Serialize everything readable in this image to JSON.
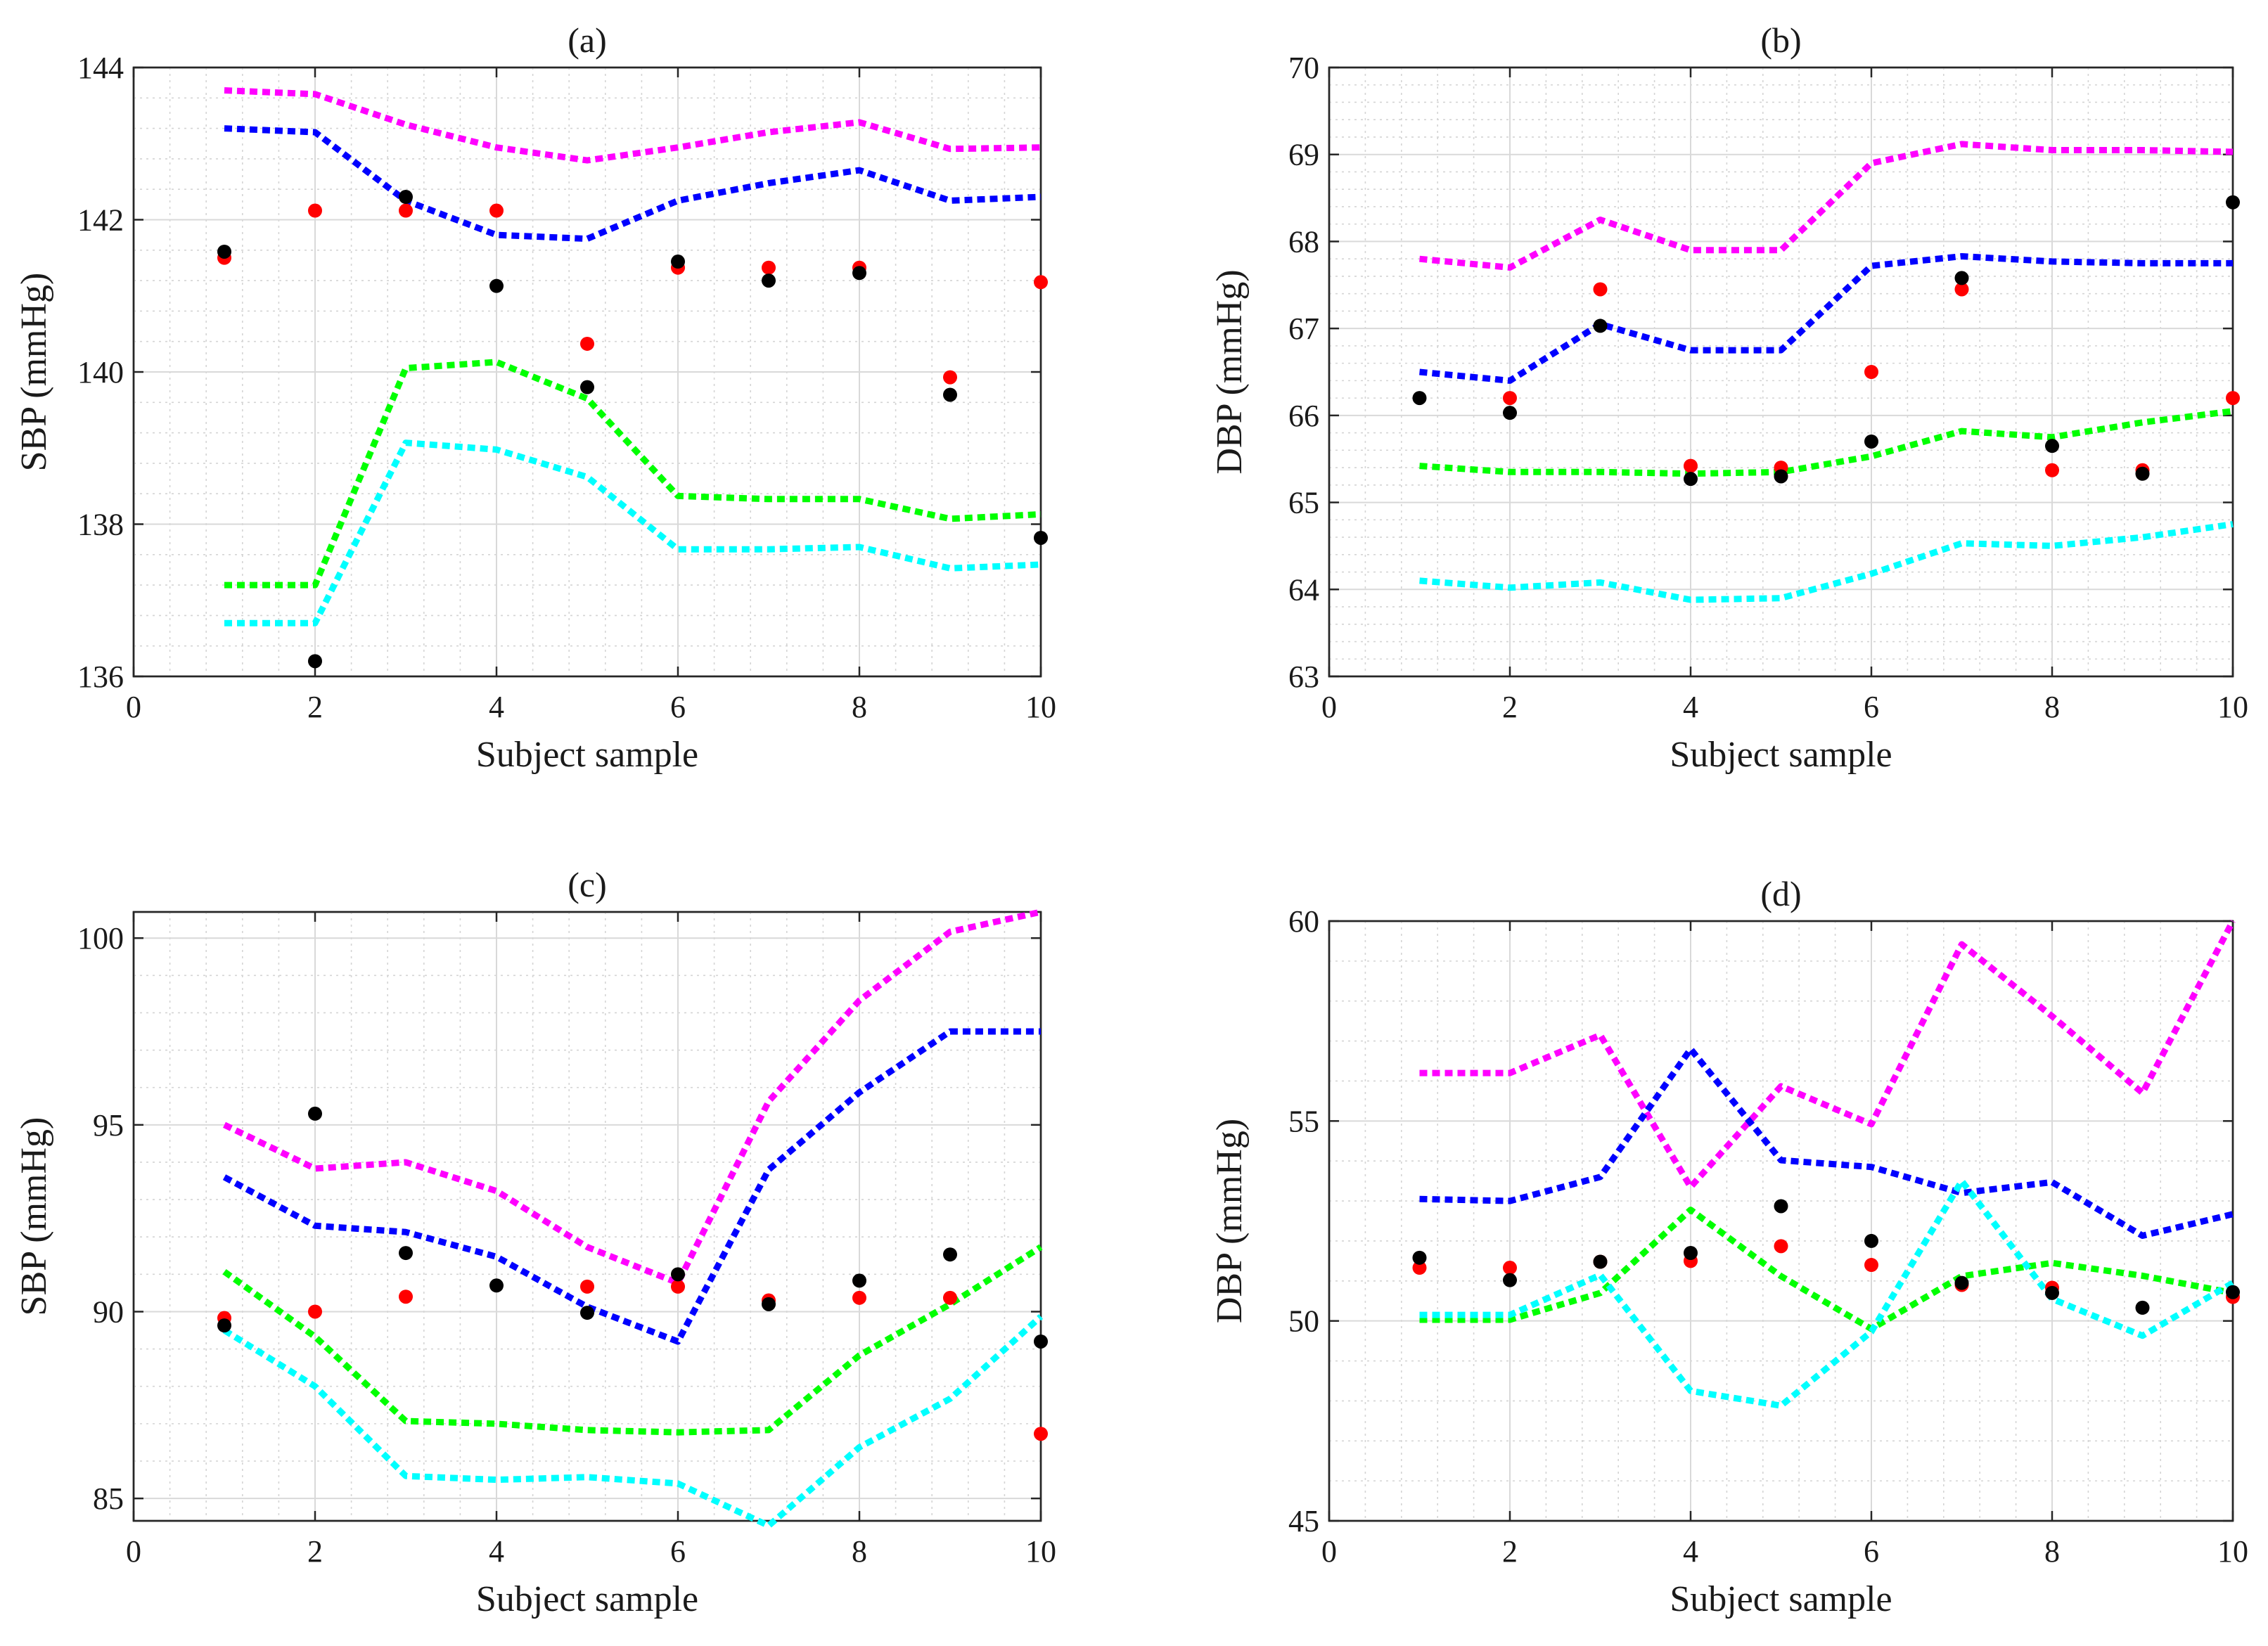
{
  "colors": {
    "magenta": "#ff00ff",
    "blue": "#0000ff",
    "green": "#00ff00",
    "cyan": "#00ffff",
    "red": "#ff0000",
    "black": "#000000"
  },
  "chart_data": [
    {
      "id": "a",
      "type": "line",
      "title": "(a)",
      "xlabel": "Subject sample",
      "ylabel": "SBP (mmHg)",
      "xlim": [
        0,
        10
      ],
      "ylim": [
        136,
        144
      ],
      "xticks": [
        0,
        2,
        4,
        6,
        8,
        10
      ],
      "yticks": [
        136,
        138,
        140,
        142,
        144
      ],
      "grid": true,
      "x": [
        1,
        2,
        3,
        4,
        5,
        6,
        7,
        8,
        9,
        10
      ],
      "series": [
        {
          "name": "magenta-dotted",
          "kind": "line",
          "color": "magenta",
          "values": [
            143.7,
            143.65,
            143.25,
            142.95,
            142.78,
            142.95,
            143.15,
            143.28,
            142.93,
            142.95
          ]
        },
        {
          "name": "blue-dotted",
          "kind": "line",
          "color": "blue",
          "values": [
            143.2,
            143.15,
            142.25,
            141.8,
            141.75,
            142.25,
            142.48,
            142.65,
            142.25,
            142.3
          ]
        },
        {
          "name": "green-dotted",
          "kind": "line",
          "color": "green",
          "values": [
            137.2,
            137.2,
            140.05,
            140.13,
            139.65,
            138.37,
            138.33,
            138.33,
            138.07,
            138.13
          ]
        },
        {
          "name": "cyan-dotted",
          "kind": "line",
          "color": "cyan",
          "values": [
            136.7,
            136.7,
            139.07,
            138.98,
            138.62,
            137.67,
            137.67,
            137.7,
            137.42,
            137.47
          ]
        },
        {
          "name": "red-dots",
          "kind": "scatter",
          "color": "red",
          "values": [
            141.5,
            142.12,
            142.12,
            142.12,
            140.37,
            141.37,
            141.37,
            141.37,
            139.93,
            141.18
          ]
        },
        {
          "name": "black-dots",
          "kind": "scatter",
          "color": "black",
          "values": [
            141.58,
            136.2,
            142.3,
            141.13,
            139.8,
            141.45,
            141.2,
            141.3,
            139.7,
            137.82
          ]
        }
      ]
    },
    {
      "id": "b",
      "type": "line",
      "title": "(b)",
      "xlabel": "Subject sample",
      "ylabel": "DBP (mmHg)",
      "xlim": [
        0,
        10
      ],
      "ylim": [
        63,
        70
      ],
      "xticks": [
        0,
        2,
        4,
        6,
        8,
        10
      ],
      "yticks": [
        63,
        64,
        65,
        66,
        67,
        68,
        69,
        70
      ],
      "grid": true,
      "x": [
        1,
        2,
        3,
        4,
        5,
        6,
        7,
        8,
        9,
        10
      ],
      "series": [
        {
          "name": "magenta-dotted",
          "kind": "line",
          "color": "magenta",
          "values": [
            67.8,
            67.7,
            68.25,
            67.9,
            67.9,
            68.9,
            69.12,
            69.05,
            69.05,
            69.03
          ]
        },
        {
          "name": "blue-dotted",
          "kind": "line",
          "color": "blue",
          "values": [
            66.5,
            66.4,
            67.05,
            66.75,
            66.75,
            67.72,
            67.83,
            67.77,
            67.75,
            67.75
          ]
        },
        {
          "name": "green-dotted",
          "kind": "line",
          "color": "green",
          "values": [
            65.42,
            65.35,
            65.35,
            65.33,
            65.35,
            65.53,
            65.82,
            65.75,
            65.92,
            66.05
          ]
        },
        {
          "name": "cyan-dotted",
          "kind": "line",
          "color": "cyan",
          "values": [
            64.1,
            64.02,
            64.08,
            63.88,
            63.9,
            64.18,
            64.53,
            64.5,
            64.6,
            64.75
          ]
        },
        {
          "name": "red-dots",
          "kind": "scatter",
          "color": "red",
          "values": [
            null,
            66.2,
            67.45,
            65.42,
            65.4,
            66.5,
            67.45,
            65.37,
            65.37,
            66.2
          ]
        },
        {
          "name": "black-dots",
          "kind": "scatter",
          "color": "black",
          "values": [
            66.2,
            66.03,
            67.03,
            65.27,
            65.3,
            65.7,
            67.58,
            65.65,
            65.33,
            68.45
          ]
        }
      ]
    },
    {
      "id": "c",
      "type": "line",
      "title": "(c)",
      "xlabel": "Subject sample",
      "ylabel": "SBP (mmHg)",
      "xlim": [
        0,
        10
      ],
      "ylim": [
        84.4,
        100.7
      ],
      "xticks": [
        0,
        2,
        4,
        6,
        8,
        10
      ],
      "yticks": [
        85,
        90,
        95,
        100
      ],
      "grid": true,
      "x": [
        1,
        2,
        3,
        4,
        5,
        6,
        7,
        8,
        9,
        10
      ],
      "series": [
        {
          "name": "magenta-dotted",
          "kind": "line",
          "color": "magenta",
          "values": [
            95.0,
            93.83,
            94.0,
            93.23,
            91.73,
            90.77,
            95.63,
            98.33,
            100.17,
            100.7
          ]
        },
        {
          "name": "blue-dotted",
          "kind": "line",
          "color": "blue",
          "values": [
            93.6,
            92.3,
            92.13,
            91.47,
            90.13,
            89.2,
            93.8,
            95.87,
            97.5,
            97.5
          ]
        },
        {
          "name": "green-dotted",
          "kind": "line",
          "color": "green",
          "values": [
            91.07,
            89.33,
            87.07,
            87.0,
            86.83,
            86.77,
            86.83,
            88.83,
            90.2,
            91.73
          ]
        },
        {
          "name": "cyan-dotted",
          "kind": "line",
          "color": "cyan",
          "values": [
            89.5,
            88.0,
            85.6,
            85.5,
            85.57,
            85.4,
            84.27,
            86.37,
            87.67,
            89.87
          ]
        },
        {
          "name": "red-dots",
          "kind": "scatter",
          "color": "red",
          "values": [
            89.83,
            90.0,
            90.4,
            null,
            90.67,
            90.67,
            90.3,
            90.37,
            90.37,
            86.73
          ]
        },
        {
          "name": "black-dots",
          "kind": "scatter",
          "color": "black",
          "values": [
            89.63,
            95.3,
            91.57,
            90.7,
            89.97,
            91.0,
            90.2,
            90.83,
            91.53,
            89.2
          ]
        }
      ]
    },
    {
      "id": "d",
      "type": "line",
      "title": "(d)",
      "xlabel": "Subject sample",
      "ylabel": "DBP (mmHg)",
      "xlim": [
        0,
        10
      ],
      "ylim": [
        45,
        60
      ],
      "xticks": [
        0,
        2,
        4,
        6,
        8,
        10
      ],
      "yticks": [
        45,
        50,
        55,
        60
      ],
      "grid": true,
      "x": [
        1,
        2,
        3,
        4,
        5,
        6,
        7,
        8,
        9,
        10
      ],
      "series": [
        {
          "name": "magenta-dotted",
          "kind": "line",
          "color": "magenta",
          "values": [
            56.2,
            56.2,
            57.15,
            53.35,
            55.87,
            54.92,
            59.42,
            57.62,
            55.7,
            60.0
          ]
        },
        {
          "name": "blue-dotted",
          "kind": "line",
          "color": "blue",
          "values": [
            53.05,
            53.0,
            53.6,
            56.8,
            54.02,
            53.85,
            53.2,
            53.47,
            52.13,
            52.67
          ]
        },
        {
          "name": "green-dotted",
          "kind": "line",
          "color": "green",
          "values": [
            50.03,
            50.03,
            50.7,
            52.78,
            51.12,
            49.8,
            51.12,
            51.45,
            51.13,
            50.7
          ]
        },
        {
          "name": "cyan-dotted",
          "kind": "line",
          "color": "cyan",
          "values": [
            50.15,
            50.15,
            51.15,
            48.25,
            47.88,
            49.73,
            53.5,
            50.55,
            49.63,
            50.95
          ]
        },
        {
          "name": "red-dots",
          "kind": "scatter",
          "color": "red",
          "values": [
            51.33,
            51.33,
            51.48,
            51.5,
            51.87,
            51.4,
            50.9,
            50.83,
            null,
            50.6
          ]
        },
        {
          "name": "black-dots",
          "kind": "scatter",
          "color": "black",
          "values": [
            51.58,
            51.02,
            51.48,
            51.7,
            52.87,
            52.0,
            50.95,
            50.7,
            50.33,
            50.72
          ]
        }
      ]
    }
  ]
}
